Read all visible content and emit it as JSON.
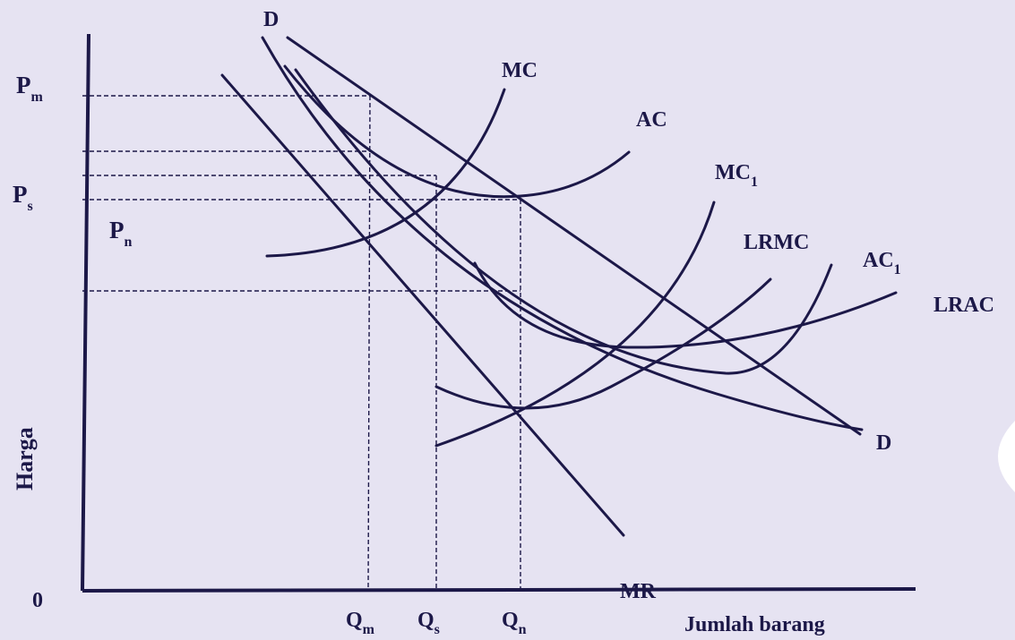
{
  "diagram": {
    "axes": {
      "y_label": "Harga",
      "x_label": "Jumlah barang",
      "origin": "0"
    },
    "price_labels": {
      "pm": {
        "main": "P",
        "sub": "m"
      },
      "ps": {
        "main": "P",
        "sub": "s"
      },
      "pn": {
        "main": "P",
        "sub": "n"
      }
    },
    "quantity_labels": {
      "qm": {
        "main": "Q",
        "sub": "m"
      },
      "qs": {
        "main": "Q",
        "sub": "s"
      },
      "qn": {
        "main": "Q",
        "sub": "n"
      }
    },
    "curve_labels": {
      "d_top": "D",
      "d_bottom": "D",
      "mr": "MR",
      "mc": "MC",
      "ac": "AC",
      "mc1": {
        "main": "MC",
        "sub": "1"
      },
      "ac1": {
        "main": "AC",
        "sub": "1"
      },
      "lrmc": "LRMC",
      "lrac": "LRAC"
    },
    "colors": {
      "background": "#e6e3f2",
      "line": "#1c1848"
    }
  }
}
